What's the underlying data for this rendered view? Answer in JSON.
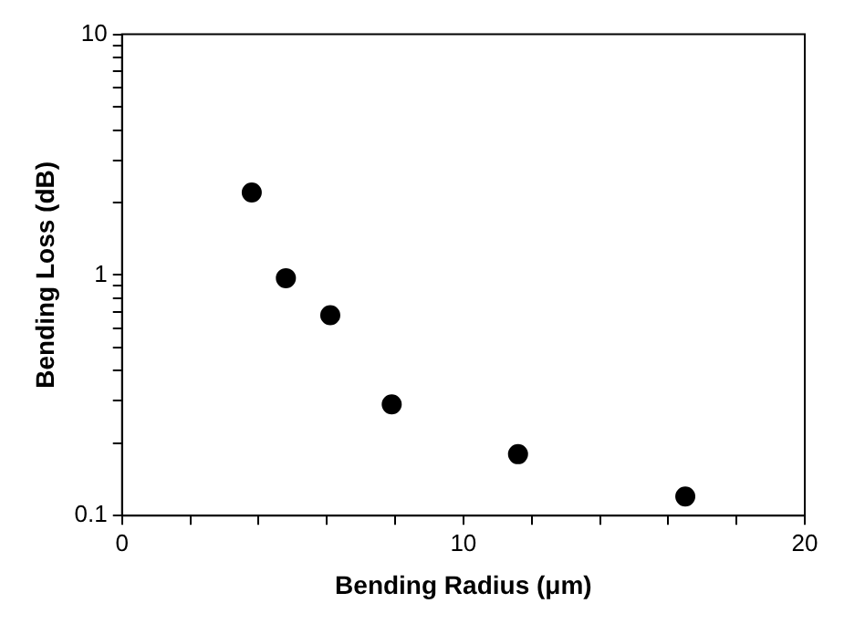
{
  "chart_data": {
    "type": "scatter",
    "xlabel": "Bending Radius (μm)",
    "ylabel": "Bending Loss (dB)",
    "x": [
      3.8,
      4.8,
      6.1,
      7.9,
      11.6,
      16.5
    ],
    "values": [
      2.2,
      0.97,
      0.68,
      0.29,
      0.18,
      0.12
    ],
    "color": "#000000",
    "marker": "circle",
    "log": "y",
    "grid": false,
    "legend": false,
    "xlim": [
      0,
      20
    ],
    "xticks": [
      0,
      {
        "value": 2,
        "label": null
      },
      {
        "value": 4,
        "label": null
      },
      {
        "value": 6,
        "label": null
      },
      {
        "value": 8,
        "label": null
      },
      10,
      {
        "value": 12,
        "label": null
      },
      {
        "value": 14,
        "label": null
      },
      {
        "value": 16,
        "label": null
      },
      {
        "value": 18,
        "label": null
      },
      20
    ],
    "ylim": [
      0.1,
      10
    ],
    "yticks": [
      0.1,
      {
        "value": 0.2,
        "label": null
      },
      {
        "value": 0.3,
        "label": null
      },
      {
        "value": 0.4,
        "label": null
      },
      {
        "value": 0.5,
        "label": null
      },
      {
        "value": 0.6,
        "label": null
      },
      {
        "value": 0.7,
        "label": null
      },
      {
        "value": 0.8,
        "label": null
      },
      {
        "value": 0.9,
        "label": null
      },
      1,
      {
        "value": 2,
        "label": null
      },
      {
        "value": 3,
        "label": null
      },
      {
        "value": 4,
        "label": null
      },
      {
        "value": 5,
        "label": null
      },
      {
        "value": 6,
        "label": null
      },
      {
        "value": 7,
        "label": null
      },
      {
        "value": 8,
        "label": null
      },
      {
        "value": 9,
        "label": null
      },
      10
    ]
  }
}
